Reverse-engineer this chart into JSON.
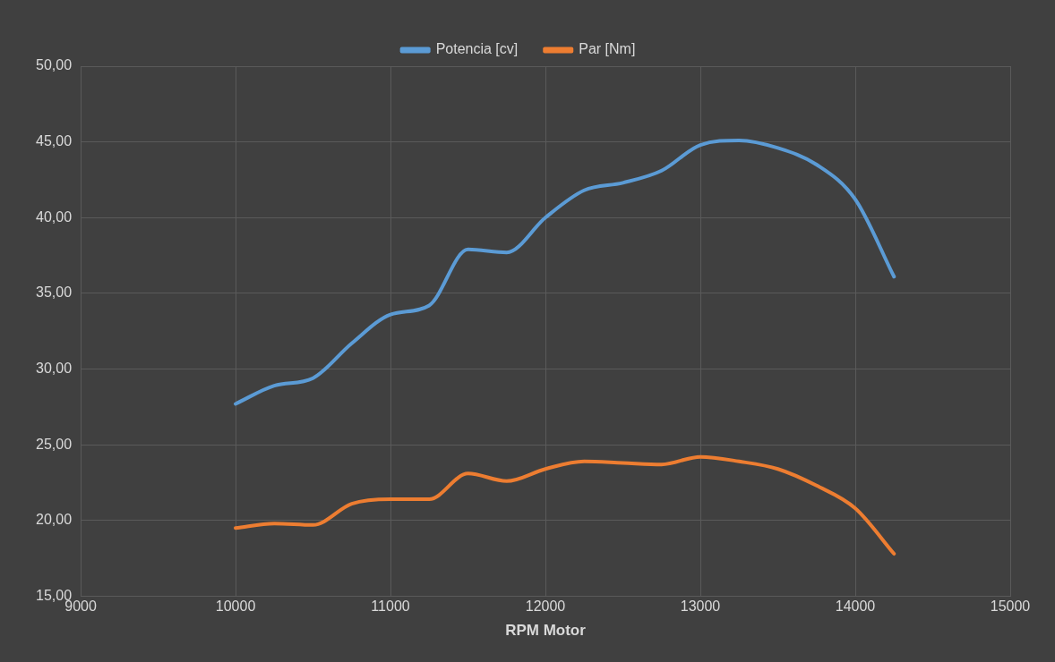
{
  "chart_data": {
    "type": "line",
    "xlabel": "RPM Motor",
    "x": [
      10000,
      10250,
      10500,
      10750,
      11000,
      11250,
      11500,
      11750,
      12000,
      12250,
      12500,
      12750,
      13000,
      13250,
      13500,
      13750,
      14000,
      14250
    ],
    "series": [
      {
        "name": "Potencia [cv]",
        "color": "#5b9bd5",
        "values": [
          27.7,
          28.9,
          29.4,
          31.7,
          33.6,
          34.2,
          37.9,
          37.7,
          40.0,
          41.8,
          42.3,
          43.1,
          44.8,
          45.1,
          44.6,
          43.5,
          41.2,
          36.1
        ]
      },
      {
        "name": "Par [Nm]",
        "color": "#ed7d31",
        "values": [
          19.5,
          19.8,
          19.7,
          21.1,
          21.4,
          21.4,
          23.1,
          22.6,
          23.4,
          23.9,
          23.8,
          23.7,
          24.2,
          23.9,
          23.4,
          22.3,
          20.8,
          17.8
        ]
      }
    ],
    "xlim": [
      9000,
      15000
    ],
    "xticks": [
      9000,
      10000,
      11000,
      12000,
      13000,
      14000,
      15000
    ],
    "ylim": [
      15,
      50
    ],
    "yticks": [
      {
        "value": 15,
        "label": "15,00"
      },
      {
        "value": 20,
        "label": "20,00"
      },
      {
        "value": 25,
        "label": "25,00"
      },
      {
        "value": 30,
        "label": "30,00"
      },
      {
        "value": 35,
        "label": "35,00"
      },
      {
        "value": 40,
        "label": "40,00"
      },
      {
        "value": 45,
        "label": "45,00"
      },
      {
        "value": 50,
        "label": "50,00"
      }
    ],
    "grid": true,
    "legend": "top",
    "marker": "none",
    "line_style": "solid"
  }
}
